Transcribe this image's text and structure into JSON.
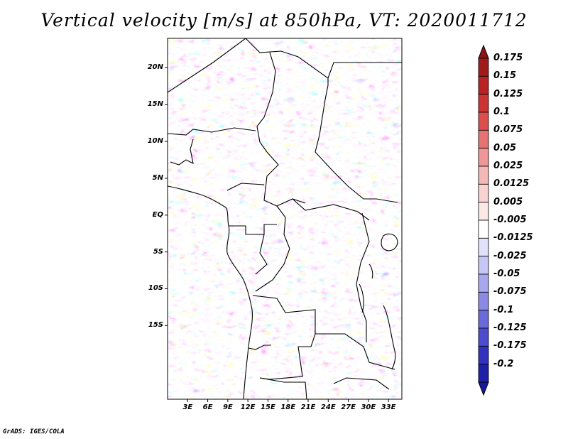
{
  "title": "Vertical velocity [m/s] at 850hPa, VT: 2020011712",
  "credit": "GrADS: IGES/COLA",
  "map": {
    "lat_range": [
      -25,
      24
    ],
    "lon_range": [
      0,
      35
    ],
    "lat_ticks": [
      {
        "value": 20,
        "label": "20N"
      },
      {
        "value": 15,
        "label": "15N"
      },
      {
        "value": 10,
        "label": "10N"
      },
      {
        "value": 5,
        "label": "5N"
      },
      {
        "value": 0,
        "label": "EQ"
      },
      {
        "value": -5,
        "label": "5S"
      },
      {
        "value": -10,
        "label": "10S"
      },
      {
        "value": -15,
        "label": "15S"
      }
    ],
    "lon_ticks": [
      {
        "value": 3,
        "label": "3E"
      },
      {
        "value": 6,
        "label": "6E"
      },
      {
        "value": 9,
        "label": "9E"
      },
      {
        "value": 12,
        "label": "12E"
      },
      {
        "value": 15,
        "label": "15E"
      },
      {
        "value": 18,
        "label": "18E"
      },
      {
        "value": 21,
        "label": "21E"
      },
      {
        "value": 24,
        "label": "24E"
      },
      {
        "value": 27,
        "label": "27E"
      },
      {
        "value": 30,
        "label": "30E"
      },
      {
        "value": 33,
        "label": "33E"
      }
    ]
  },
  "colorbar": {
    "levels": [
      {
        "label": "0.175",
        "color": "#a01a1a"
      },
      {
        "label": "0.15",
        "color": "#b82222"
      },
      {
        "label": "0.125",
        "color": "#cc3333"
      },
      {
        "label": "0.1",
        "color": "#dc4e4e"
      },
      {
        "label": "0.075",
        "color": "#e67272"
      },
      {
        "label": "0.05",
        "color": "#ef9696"
      },
      {
        "label": "0.025",
        "color": "#f5b8b8"
      },
      {
        "label": "0.0125",
        "color": "#f9d2d2"
      },
      {
        "label": "0.005",
        "color": "#fde8e8"
      },
      {
        "label": "-0.005",
        "color": "#ffffff"
      },
      {
        "label": "-0.0125",
        "color": "#e2e2fb"
      },
      {
        "label": "-0.025",
        "color": "#c7c7f5"
      },
      {
        "label": "-0.05",
        "color": "#a8a8ef"
      },
      {
        "label": "-0.075",
        "color": "#8a8ae6"
      },
      {
        "label": "-0.1",
        "color": "#6a6adb"
      },
      {
        "label": "-0.125",
        "color": "#4c4cce"
      },
      {
        "label": "-0.175",
        "color": "#3232bf"
      },
      {
        "label": "-0.2",
        "color": "#1f1fa8"
      }
    ],
    "bottom_color": "#18189a",
    "top_color": "#8e1414"
  }
}
